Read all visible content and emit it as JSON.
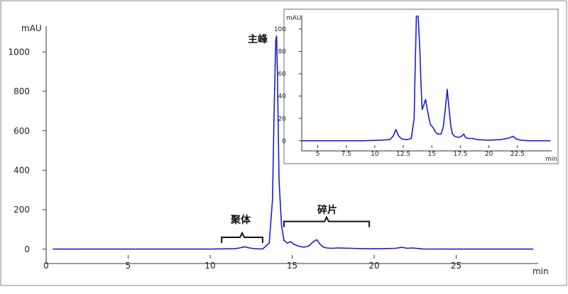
{
  "chart_data": [
    {
      "type": "line",
      "x_unit": "min",
      "y_unit": "mAU",
      "xlim": [
        0,
        30
      ],
      "ylim": [
        -30,
        1130
      ],
      "x_ticks": [
        "0",
        "5",
        "10",
        "15",
        "20",
        "25"
      ],
      "y_ticks": [
        "0",
        "200",
        "400",
        "600",
        "800",
        "1000"
      ],
      "line_color": "#1a1adb",
      "grid": false,
      "annotations": {
        "main_peak": "主峰",
        "aggregate": "聚体",
        "fragment": "碎片"
      },
      "brackets": [
        {
          "label_key": "aggregate",
          "x_start": 10.7,
          "x_end": 13.2,
          "y": 60
        },
        {
          "label_key": "fragment",
          "x_start": 14.5,
          "x_end": 19.7,
          "y": 140
        }
      ],
      "series": [
        {
          "x": [
            0.4,
            4,
            8,
            10,
            11.5,
            11.8,
            12.1,
            12.4,
            12.7,
            13.2,
            13.6,
            13.8,
            13.9,
            14.0,
            14.05,
            14.1,
            14.2,
            14.35,
            14.5,
            14.7,
            14.9,
            15.1,
            15.4,
            15.7,
            16.0,
            16.3,
            16.5,
            16.7,
            16.9,
            17.1,
            17.4,
            17.8,
            18.2,
            18.6,
            19.0,
            19.5,
            20.5,
            21.3,
            21.7,
            22.0,
            22.3,
            23,
            25,
            28,
            29.7
          ],
          "y": [
            0,
            0,
            0,
            0,
            2,
            6,
            12,
            6,
            2,
            1,
            30,
            250,
            700,
            1060,
            1080,
            900,
            350,
            120,
            45,
            30,
            38,
            25,
            15,
            10,
            15,
            38,
            48,
            25,
            10,
            6,
            4,
            6,
            5,
            4,
            3,
            2,
            2,
            4,
            9,
            4,
            6,
            1,
            0,
            0,
            0
          ]
        }
      ]
    },
    {
      "type": "line",
      "x_unit": "min",
      "y_unit": "mAU",
      "xlim": [
        3.6,
        25.5
      ],
      "ylim": [
        -4,
        112
      ],
      "x_ticks": [
        "5",
        "7.5",
        "10",
        "12.5",
        "15",
        "17.5",
        "20",
        "22.5"
      ],
      "y_ticks": [
        "0",
        "20",
        "40",
        "60",
        "80",
        "100"
      ],
      "line_color": "#1a1adb",
      "grid": false,
      "series": [
        {
          "x": [
            3.6,
            6,
            9,
            10.5,
            11.3,
            11.6,
            11.85,
            12.1,
            12.4,
            12.8,
            13.2,
            13.45,
            13.55,
            13.65,
            13.8,
            13.95,
            14.05,
            14.15,
            14.3,
            14.45,
            14.6,
            14.75,
            14.9,
            15.1,
            15.3,
            15.5,
            15.8,
            16.0,
            16.2,
            16.35,
            16.5,
            16.65,
            16.8,
            17.0,
            17.3,
            17.6,
            17.8,
            17.95,
            18.2,
            18.6,
            19.0,
            20.0,
            21.0,
            21.6,
            21.9,
            22.1,
            22.4,
            22.8,
            23.5,
            24.5,
            25.4
          ],
          "y": [
            0,
            0,
            0,
            0.5,
            1,
            4,
            10,
            4,
            1.5,
            1,
            2,
            20,
            70,
            112,
            112,
            80,
            50,
            28,
            32,
            37,
            28,
            20,
            14,
            12,
            8,
            6,
            6,
            12,
            30,
            46,
            30,
            14,
            6,
            4,
            3,
            4,
            6,
            3,
            2,
            2,
            1,
            0.5,
            1,
            2,
            3,
            4,
            1.5,
            0.5,
            0,
            0,
            0
          ]
        }
      ]
    }
  ]
}
